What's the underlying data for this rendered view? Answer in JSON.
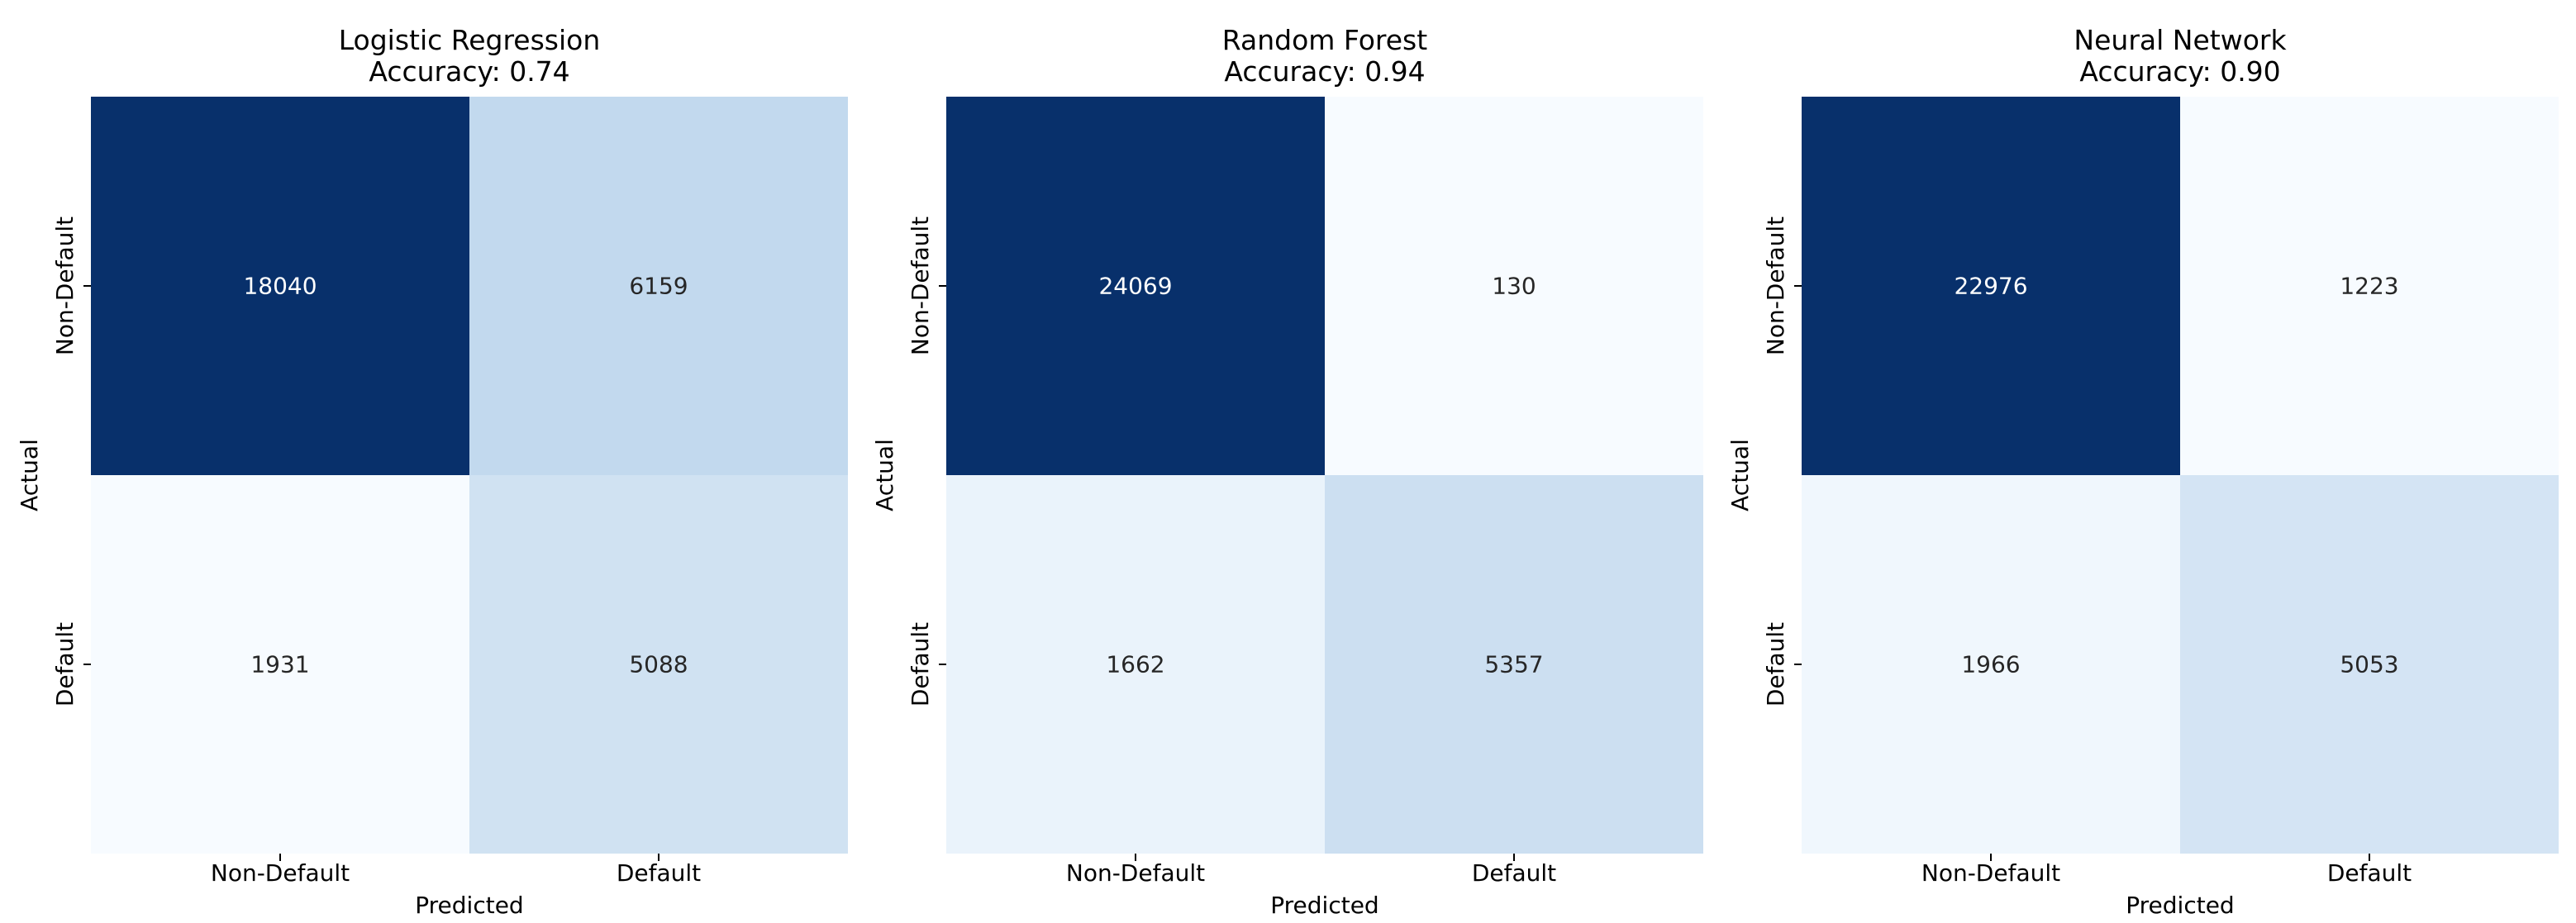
{
  "chart_data": [
    {
      "type": "heatmap",
      "title": "Logistic Regression",
      "subtitle": "Accuracy: 0.74",
      "xlabel": "Predicted",
      "ylabel": "Actual",
      "x_categories": [
        "Non-Default",
        "Default"
      ],
      "y_categories": [
        "Non-Default",
        "Default"
      ],
      "values": [
        [
          18040,
          6159
        ],
        [
          1931,
          5088
        ]
      ]
    },
    {
      "type": "heatmap",
      "title": "Random Forest",
      "subtitle": "Accuracy: 0.94",
      "xlabel": "Predicted",
      "ylabel": "Actual",
      "x_categories": [
        "Non-Default",
        "Default"
      ],
      "y_categories": [
        "Non-Default",
        "Default"
      ],
      "values": [
        [
          24069,
          130
        ],
        [
          1662,
          5357
        ]
      ]
    },
    {
      "type": "heatmap",
      "title": "Neural Network",
      "subtitle": "Accuracy: 0.90",
      "xlabel": "Predicted",
      "ylabel": "Actual",
      "x_categories": [
        "Non-Default",
        "Default"
      ],
      "y_categories": [
        "Non-Default",
        "Default"
      ],
      "values": [
        [
          22976,
          1223
        ],
        [
          1966,
          5053
        ]
      ]
    }
  ],
  "colors": {
    "colormap": "Blues",
    "low": "#f7fbff",
    "high": "#08306b"
  }
}
